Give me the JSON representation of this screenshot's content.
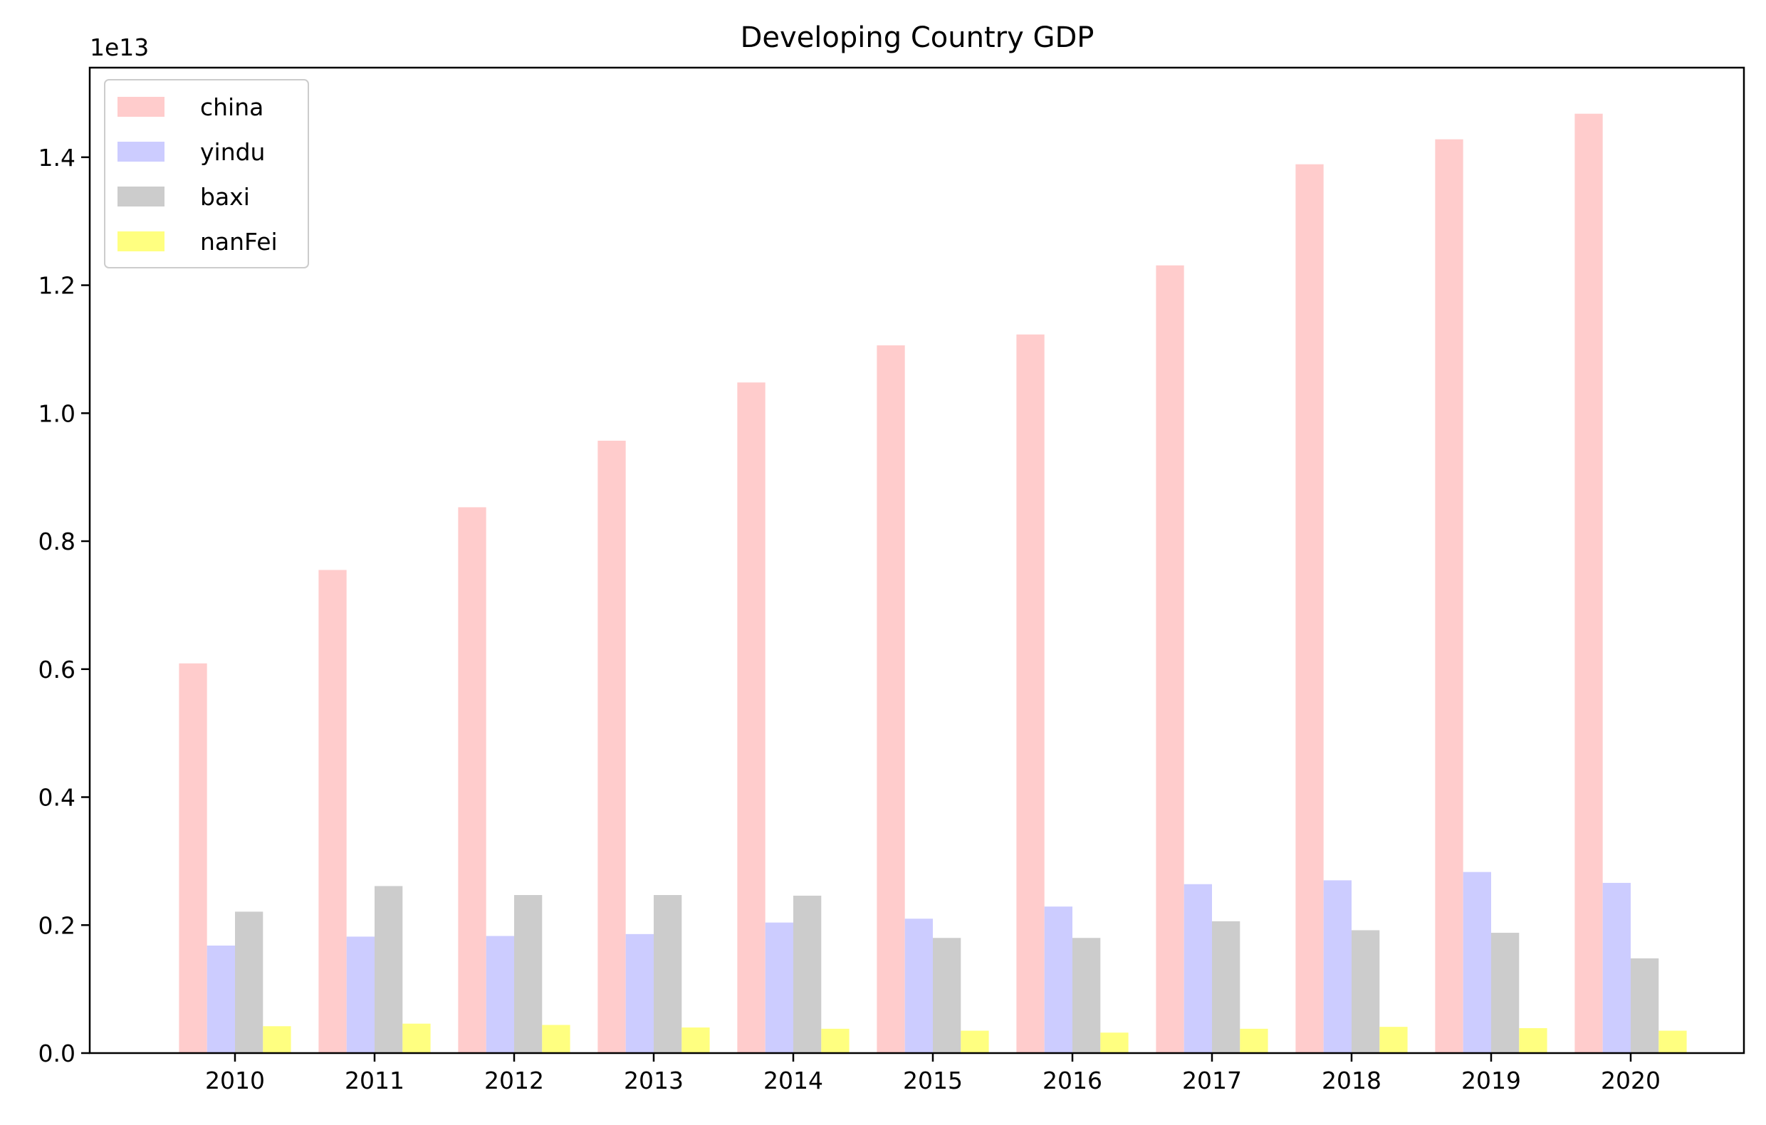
{
  "chart_data": {
    "type": "bar",
    "title": "Developing Country GDP",
    "xlabel": "",
    "ylabel": "",
    "offset_label": "1e13",
    "categories": [
      "2010",
      "2011",
      "2012",
      "2013",
      "2014",
      "2015",
      "2016",
      "2017",
      "2018",
      "2019",
      "2020"
    ],
    "yticks": [
      0.0,
      0.2,
      0.4,
      0.6,
      0.8,
      1.0,
      1.2,
      1.4
    ],
    "ytick_labels": [
      "0.0",
      "0.2",
      "0.4",
      "0.6",
      "0.8",
      "1.0",
      "1.2",
      "1.4"
    ],
    "ylim": [
      0,
      1.54
    ],
    "legend_position": "upper-left",
    "grid": false,
    "series": [
      {
        "name": "china",
        "color": "#ffcccc",
        "values": [
          0.609,
          0.755,
          0.853,
          0.957,
          1.048,
          1.106,
          1.123,
          1.231,
          1.389,
          1.428,
          1.468
        ]
      },
      {
        "name": "yindu",
        "color": "#ccccff",
        "values": [
          0.168,
          0.182,
          0.183,
          0.186,
          0.204,
          0.21,
          0.229,
          0.264,
          0.27,
          0.283,
          0.266
        ]
      },
      {
        "name": "baxi",
        "color": "#cccccc",
        "values": [
          0.221,
          0.261,
          0.247,
          0.247,
          0.246,
          0.18,
          0.18,
          0.206,
          0.192,
          0.188,
          0.148
        ]
      },
      {
        "name": "nanFei",
        "color": "#ffff80",
        "values": [
          0.042,
          0.046,
          0.044,
          0.04,
          0.038,
          0.035,
          0.032,
          0.038,
          0.041,
          0.039,
          0.035
        ]
      }
    ]
  }
}
